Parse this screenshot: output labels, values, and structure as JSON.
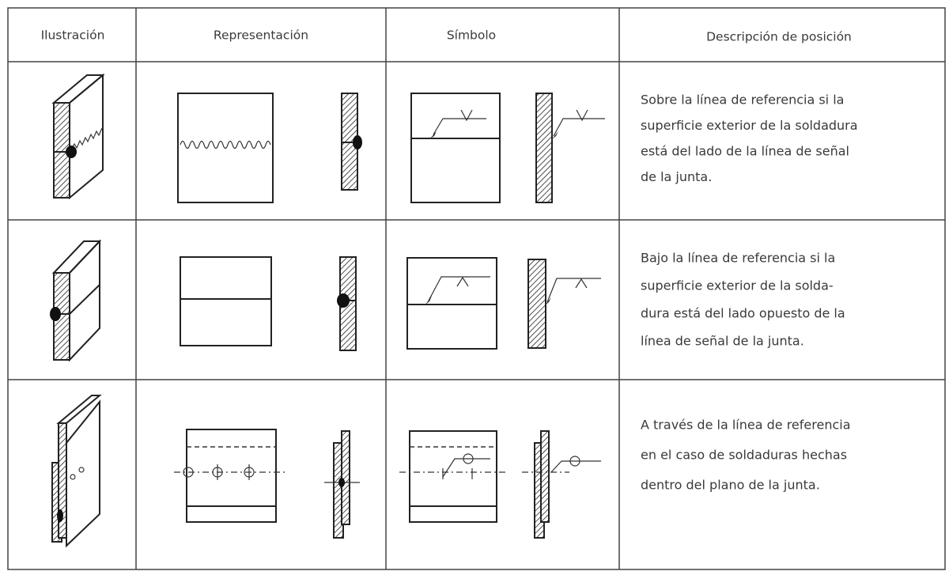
{
  "table": {
    "headers": [
      "Ilustración",
      "Representación",
      "Símbolo",
      "Descripción de posición"
    ],
    "rows": [
      {
        "description": [
          "Sobre la línea de referencia si la",
          "superficie exterior de la soldadura",
          "está del lado de la línea de señal",
          "de la junta."
        ]
      },
      {
        "description": [
          "Bajo la línea de referencia si la",
          "superficie exterior de la solda-",
          "dura está del lado opuesto de la",
          "línea de señal de la junta."
        ]
      },
      {
        "description": [
          "A través de  la línea de referencia",
          "en el caso de soldaduras hechas",
          "dentro del plano de la junta."
        ]
      }
    ]
  }
}
